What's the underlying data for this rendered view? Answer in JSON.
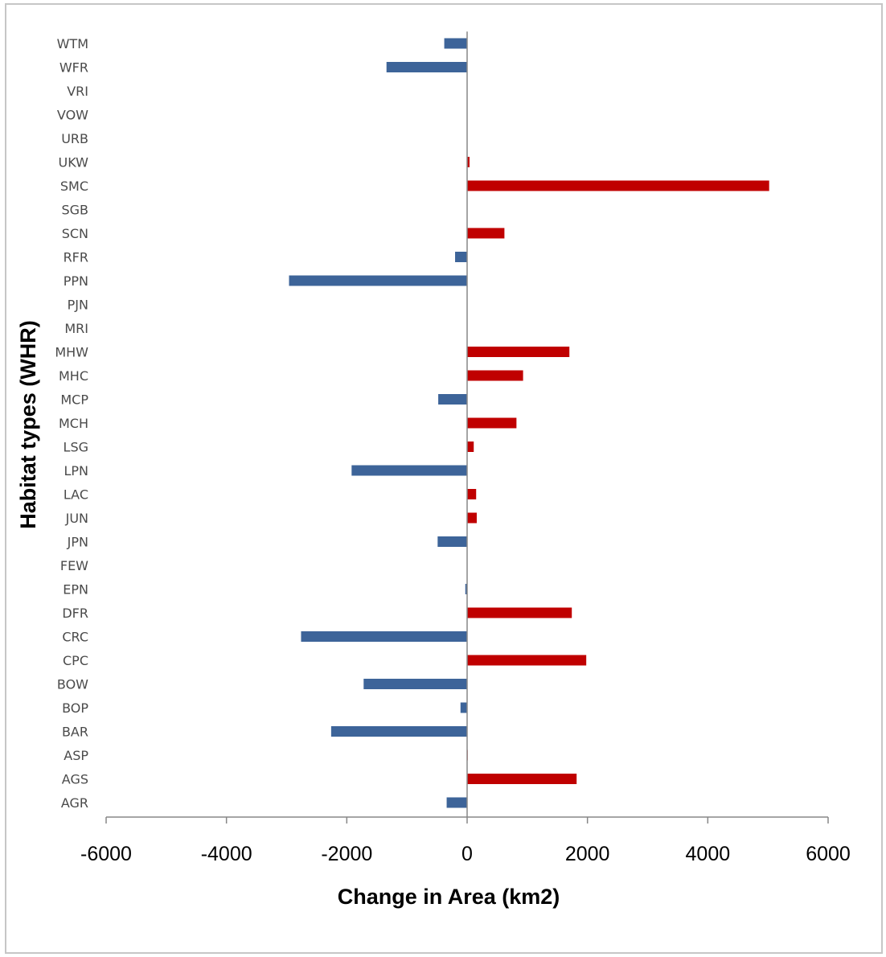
{
  "chart_data": {
    "type": "bar",
    "orientation": "horizontal",
    "title": "",
    "xlabel": "Change in Area (km2)",
    "ylabel": "Habitat types (WHR)",
    "xlim": [
      -6000,
      6000
    ],
    "xticks": [
      "-6000",
      "-4000",
      "-2000",
      "0",
      "2000",
      "4000",
      "6000"
    ],
    "grid": false,
    "legend": "none",
    "colors": {
      "negative": "#3d6499",
      "positive": "#c00000"
    },
    "categories": [
      "WTM",
      "WFR",
      "VRI",
      "VOW",
      "URB",
      "UKW",
      "SMC",
      "SGB",
      "SCN",
      "RFR",
      "PPN",
      "PJN",
      "MRI",
      "MHW",
      "MHC",
      "MCP",
      "MCH",
      "LSG",
      "LPN",
      "LAC",
      "JUN",
      "JPN",
      "FEW",
      "EPN",
      "DFR",
      "CRC",
      "CPC",
      "BOW",
      "BOP",
      "BAR",
      "ASP",
      "AGS",
      "AGR"
    ],
    "values": [
      -380,
      -1340,
      0,
      0,
      0,
      40,
      5020,
      0,
      620,
      -200,
      -2960,
      0,
      0,
      1700,
      930,
      -480,
      820,
      110,
      -1920,
      150,
      160,
      -490,
      0,
      -30,
      1740,
      -2760,
      1980,
      -1720,
      -110,
      -2260,
      10,
      1820,
      -340
    ]
  }
}
